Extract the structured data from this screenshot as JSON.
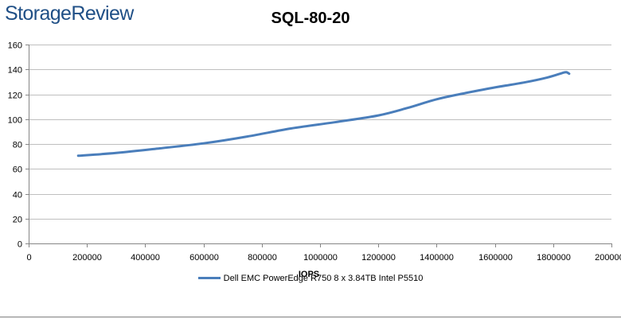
{
  "brand": "StorageReview",
  "chart_data": {
    "type": "line",
    "title": "SQL-80-20",
    "xlabel": "IOPS",
    "ylabel": "",
    "xlim": [
      0,
      2000000
    ],
    "ylim": [
      0,
      160
    ],
    "x_ticks": [
      0,
      200000,
      400000,
      600000,
      800000,
      1000000,
      1200000,
      1400000,
      1600000,
      1800000,
      2000000
    ],
    "x_tick_labels": [
      "0",
      "200000",
      "400000",
      "600000",
      "800000",
      "1000000",
      "1200000",
      "1400000",
      "1600000",
      "1800000",
      "2000000"
    ],
    "y_ticks": [
      0,
      20,
      40,
      60,
      80,
      100,
      120,
      140,
      160
    ],
    "y_tick_labels": [
      "0",
      "20",
      "40",
      "60",
      "80",
      "100",
      "120",
      "140",
      "160"
    ],
    "grid": "horizontal",
    "legend_position": "bottom",
    "series": [
      {
        "name": "Dell EMC PowerEdge R750 8 x 3.84TB Intel P5510",
        "color": "#4a7ebb",
        "points": [
          [
            170000,
            70.5
          ],
          [
            300000,
            72.8
          ],
          [
            450000,
            76.5
          ],
          [
            600000,
            80.5
          ],
          [
            750000,
            86
          ],
          [
            900000,
            92.5
          ],
          [
            1050000,
            97.5
          ],
          [
            1200000,
            103
          ],
          [
            1300000,
            109
          ],
          [
            1400000,
            116
          ],
          [
            1500000,
            121
          ],
          [
            1600000,
            125.5
          ],
          [
            1700000,
            129.5
          ],
          [
            1780000,
            133.5
          ],
          [
            1830000,
            137
          ],
          [
            1845000,
            137.8
          ],
          [
            1855000,
            136.5
          ]
        ]
      }
    ]
  }
}
